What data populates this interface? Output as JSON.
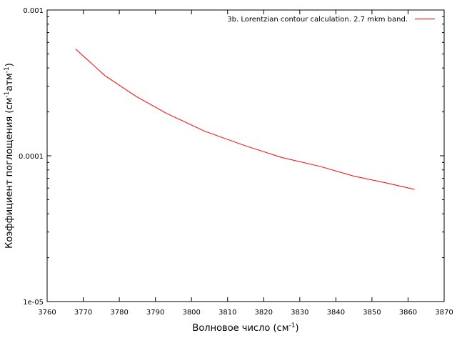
{
  "chart_data": {
    "type": "line",
    "title": "",
    "xlabel": "Волновое число (см",
    "xlabel_sup": "-1",
    "xlabel_close": ")",
    "ylabel_main": "Коэффициент поглощения (см",
    "ylabel_sup1": "-1",
    "ylabel_mid": "атм",
    "ylabel_sup2": "-1",
    "ylabel_close": ")",
    "xlim": [
      3760,
      3870
    ],
    "ylim": [
      1e-05,
      0.001
    ],
    "yscale": "log",
    "grid": false,
    "legend_position": "top-right",
    "x_ticks": [
      "3760",
      "3770",
      "3780",
      "3790",
      "3800",
      "3810",
      "3820",
      "3830",
      "3840",
      "3850",
      "3860",
      "3870"
    ],
    "y_ticks": [
      "1e-05",
      "0.0001",
      "0.001"
    ],
    "series": [
      {
        "name": "3b. Lorentzian contour calculation. 2.7 mkm band.",
        "color": "#ff0000",
        "x": [
          3767.9,
          3776.0,
          3784.5,
          3793.0,
          3803.5,
          3814.5,
          3825.0,
          3835.5,
          3845.0,
          3853.5,
          3861.8
        ],
        "y": [
          0.00054,
          0.000355,
          0.000257,
          0.000196,
          0.000148,
          0.000118,
          9.73e-05,
          8.47e-05,
          7.25e-05,
          6.55e-05,
          5.88e-05
        ]
      }
    ]
  }
}
